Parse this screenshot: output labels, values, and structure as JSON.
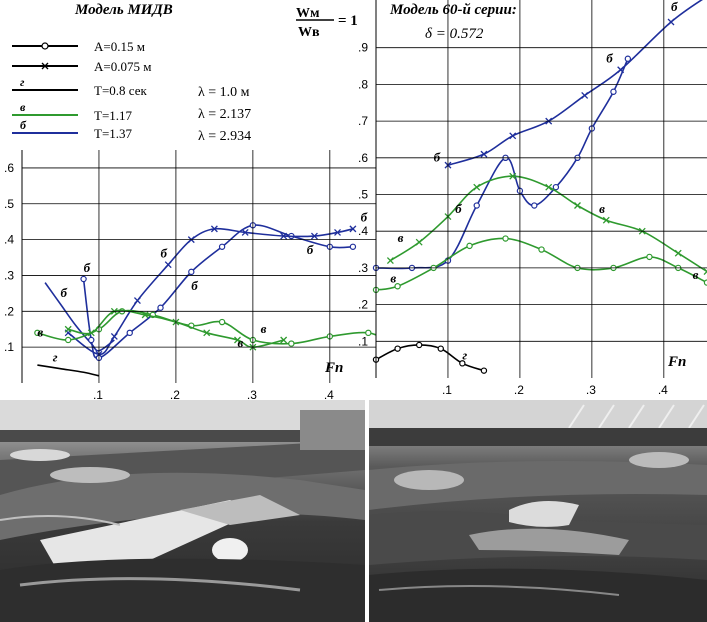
{
  "legend": {
    "items": [
      {
        "mark": "",
        "text": "A=0.15 м",
        "color": "#000000",
        "marker": "circle"
      },
      {
        "mark": "",
        "text": "A=0.075 м",
        "color": "#000000",
        "marker": "cross"
      },
      {
        "mark": "г",
        "text": "T=0.8 сек",
        "color": "#000000",
        "marker": "none"
      },
      {
        "mark": "в",
        "text": "T=1.17",
        "color": "#2f9a2f",
        "marker": "none"
      },
      {
        "mark": "б",
        "text": "T=1.37",
        "color": "#1f2f9c",
        "marker": "none"
      }
    ],
    "lambda": [
      "λ = 1.0  м",
      "λ = 2.137",
      "λ = 2.934"
    ]
  },
  "ratio": {
    "numerator": "Wм",
    "denominator": "Wв",
    "value": "= 1"
  },
  "colors": {
    "green": "#2f9a2f",
    "blue": "#1f2f9c",
    "black": "#000000"
  },
  "chart_data": [
    {
      "type": "line",
      "title": "Модель МИДВ",
      "xlabel": "Fn",
      "ylabel": "",
      "xlim": [
        0.0,
        0.46
      ],
      "ylim": [
        0.0,
        0.65
      ],
      "xticks": [
        ".1",
        ".2",
        ".3",
        ".4"
      ],
      "yticks": [
        ".1",
        ".2",
        ".3",
        ".4",
        ".5",
        ".6"
      ],
      "tick_values_x": [
        0.1,
        0.2,
        0.3,
        0.4
      ],
      "tick_values_y": [
        0.1,
        0.2,
        0.3,
        0.4,
        0.5,
        0.6
      ],
      "series": [
        {
          "name": "б",
          "color": "blue",
          "marker": "none",
          "x": [
            0.03,
            0.05,
            0.07,
            0.09,
            0.1,
            0.12
          ],
          "y": [
            0.28,
            0.22,
            0.16,
            0.11,
            0.09,
            0.12
          ]
        },
        {
          "name": "б",
          "color": "blue",
          "marker": "circle",
          "x": [
            0.08,
            0.09,
            0.1,
            0.14,
            0.18,
            0.22,
            0.26,
            0.3,
            0.35,
            0.4,
            0.43
          ],
          "y": [
            0.29,
            0.12,
            0.07,
            0.14,
            0.21,
            0.31,
            0.38,
            0.44,
            0.41,
            0.38,
            0.38
          ]
        },
        {
          "name": "б",
          "color": "blue",
          "marker": "cross",
          "x": [
            0.06,
            0.1,
            0.12,
            0.15,
            0.19,
            0.22,
            0.25,
            0.29,
            0.34,
            0.38,
            0.41,
            0.43
          ],
          "y": [
            0.14,
            0.08,
            0.13,
            0.23,
            0.33,
            0.4,
            0.43,
            0.42,
            0.41,
            0.41,
            0.42,
            0.43
          ]
        },
        {
          "name": "в",
          "color": "green",
          "marker": "circle",
          "x": [
            0.02,
            0.06,
            0.1,
            0.13,
            0.17,
            0.22,
            0.26,
            0.3,
            0.35,
            0.4,
            0.45,
            0.48
          ],
          "y": [
            0.14,
            0.12,
            0.15,
            0.2,
            0.19,
            0.16,
            0.17,
            0.12,
            0.11,
            0.13,
            0.14,
            0.11
          ]
        },
        {
          "name": "в",
          "color": "green",
          "marker": "cross",
          "x": [
            0.06,
            0.09,
            0.12,
            0.16,
            0.2,
            0.24,
            0.28,
            0.3,
            0.34
          ],
          "y": [
            0.15,
            0.14,
            0.2,
            0.19,
            0.17,
            0.14,
            0.12,
            0.1,
            0.12
          ]
        },
        {
          "name": "г",
          "color": "black",
          "marker": "none",
          "x": [
            0.02,
            0.05,
            0.08,
            0.1
          ],
          "y": [
            0.05,
            0.04,
            0.03,
            0.02
          ]
        }
      ],
      "annotations": [
        {
          "text": "б",
          "x": 0.08,
          "y": 0.31
        },
        {
          "text": "б",
          "x": 0.05,
          "y": 0.24
        },
        {
          "text": "в",
          "x": 0.02,
          "y": 0.13
        },
        {
          "text": "г",
          "x": 0.04,
          "y": 0.06
        },
        {
          "text": "б",
          "x": 0.18,
          "y": 0.35
        },
        {
          "text": "б",
          "x": 0.22,
          "y": 0.26
        },
        {
          "text": "в",
          "x": 0.31,
          "y": 0.14
        },
        {
          "text": "в",
          "x": 0.28,
          "y": 0.1
        },
        {
          "text": "б",
          "x": 0.37,
          "y": 0.36
        },
        {
          "text": "б",
          "x": 0.44,
          "y": 0.45
        }
      ],
      "grid": true
    },
    {
      "type": "line",
      "title": "Модель 60-й серии:",
      "subtitle": "δ = 0.572",
      "xlabel": "Fn",
      "ylabel": "",
      "xlim": [
        0.0,
        0.46
      ],
      "ylim": [
        0.0,
        1.03
      ],
      "xticks": [
        ".1",
        ".2",
        ".3",
        ".4"
      ],
      "yticks": [
        ".1",
        ".2",
        ".3",
        ".4",
        ".5",
        ".6",
        ".7",
        ".8",
        ".9"
      ],
      "tick_values_x": [
        0.1,
        0.2,
        0.3,
        0.4
      ],
      "tick_values_y": [
        0.1,
        0.2,
        0.3,
        0.4,
        0.5,
        0.6,
        0.7,
        0.8,
        0.9
      ],
      "series": [
        {
          "name": "б",
          "color": "blue",
          "marker": "cross",
          "x": [
            0.1,
            0.15,
            0.19,
            0.24,
            0.29,
            0.34,
            0.41,
            0.46
          ],
          "y": [
            0.58,
            0.61,
            0.66,
            0.7,
            0.77,
            0.84,
            0.97,
            1.04
          ]
        },
        {
          "name": "б",
          "color": "blue",
          "marker": "circle",
          "x": [
            0.0,
            0.05,
            0.1,
            0.14,
            0.18,
            0.2,
            0.22,
            0.25,
            0.28,
            0.3,
            0.33,
            0.35
          ],
          "y": [
            0.3,
            0.3,
            0.32,
            0.47,
            0.6,
            0.51,
            0.47,
            0.52,
            0.6,
            0.68,
            0.78,
            0.87
          ]
        },
        {
          "name": "в",
          "color": "green",
          "marker": "cross",
          "x": [
            0.02,
            0.06,
            0.1,
            0.14,
            0.19,
            0.24,
            0.28,
            0.32,
            0.37,
            0.42,
            0.46
          ],
          "y": [
            0.32,
            0.37,
            0.44,
            0.52,
            0.55,
            0.52,
            0.47,
            0.43,
            0.4,
            0.34,
            0.29
          ]
        },
        {
          "name": "в",
          "color": "green",
          "marker": "circle",
          "x": [
            0.0,
            0.03,
            0.08,
            0.13,
            0.18,
            0.23,
            0.28,
            0.33,
            0.38,
            0.42,
            0.46
          ],
          "y": [
            0.24,
            0.25,
            0.3,
            0.36,
            0.38,
            0.35,
            0.3,
            0.3,
            0.33,
            0.3,
            0.26
          ]
        },
        {
          "name": "г",
          "color": "black",
          "marker": "circle",
          "x": [
            0.0,
            0.03,
            0.06,
            0.09,
            0.12,
            0.15
          ],
          "y": [
            0.05,
            0.08,
            0.09,
            0.08,
            0.04,
            0.02
          ]
        }
      ],
      "annotations": [
        {
          "text": "б",
          "x": 0.08,
          "y": 0.59
        },
        {
          "text": "б",
          "x": 0.11,
          "y": 0.45
        },
        {
          "text": "в",
          "x": 0.03,
          "y": 0.37
        },
        {
          "text": "в",
          "x": 0.02,
          "y": 0.26
        },
        {
          "text": "в",
          "x": 0.31,
          "y": 0.45
        },
        {
          "text": "в",
          "x": 0.44,
          "y": 0.27
        },
        {
          "text": "б",
          "x": 0.32,
          "y": 0.86
        },
        {
          "text": "б",
          "x": 0.41,
          "y": 1.0
        },
        {
          "text": "г",
          "x": 0.12,
          "y": 0.05
        }
      ],
      "grid": true
    }
  ]
}
